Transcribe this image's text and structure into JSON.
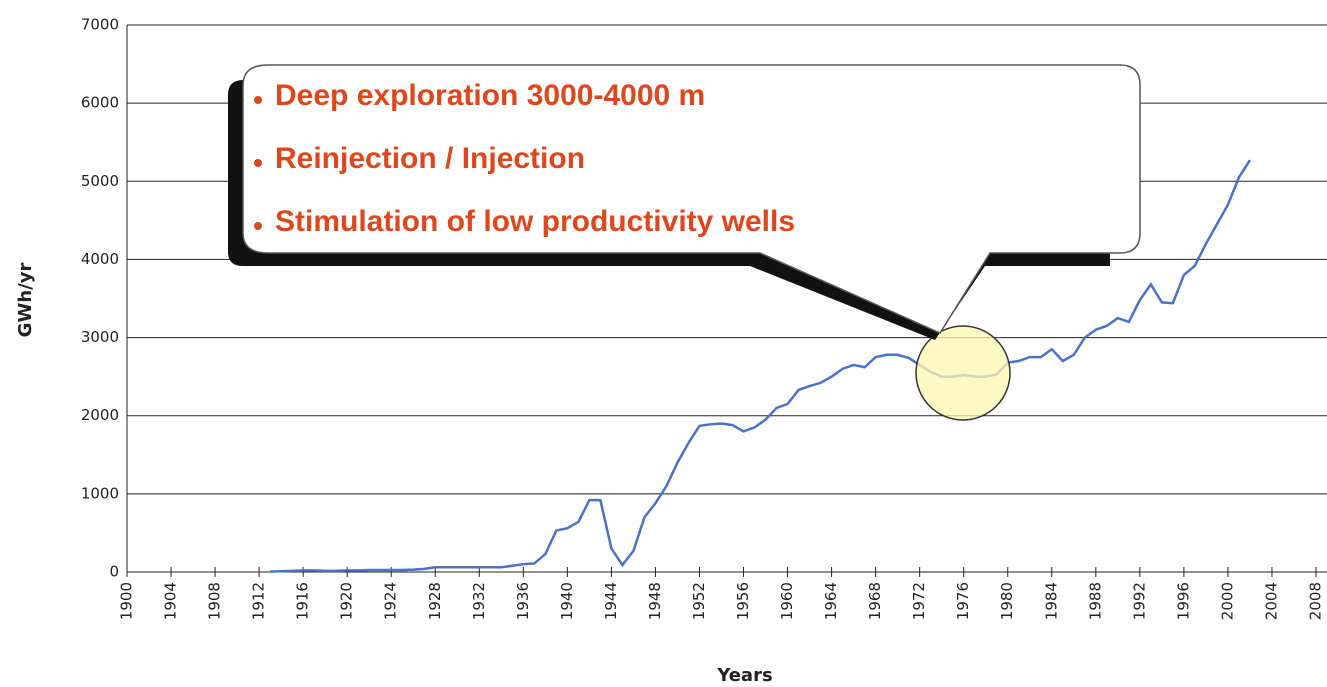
{
  "chart_data": {
    "type": "line",
    "xlabel": "Years",
    "ylabel": "GWh/yr",
    "annotations": [
      "Deep exploration 3000-4000 m",
      "Reinjection / Injection",
      "Stimulation of low  productivity wells"
    ],
    "x": [
      1913,
      1914,
      1915,
      1916,
      1917,
      1918,
      1919,
      1920,
      1921,
      1922,
      1923,
      1924,
      1925,
      1926,
      1927,
      1928,
      1929,
      1930,
      1931,
      1932,
      1933,
      1934,
      1935,
      1936,
      1937,
      1938,
      1939,
      1940,
      1941,
      1942,
      1943,
      1944,
      1945,
      1946,
      1947,
      1948,
      1949,
      1950,
      1951,
      1952,
      1953,
      1954,
      1955,
      1956,
      1957,
      1958,
      1959,
      1960,
      1961,
      1962,
      1963,
      1964,
      1965,
      1966,
      1967,
      1968,
      1969,
      1970,
      1971,
      1972,
      1973,
      1974,
      1975,
      1976,
      1977,
      1978,
      1979,
      1980,
      1981,
      1982,
      1983,
      1984,
      1985,
      1986,
      1987,
      1988,
      1989,
      1990,
      1991,
      1992,
      1993,
      1994,
      1995,
      1996,
      1997,
      1998,
      1999,
      2000,
      2001,
      2002
    ],
    "values": [
      5,
      10,
      15,
      20,
      20,
      15,
      15,
      20,
      20,
      25,
      25,
      25,
      25,
      30,
      40,
      60,
      60,
      60,
      60,
      60,
      60,
      60,
      80,
      100,
      110,
      230,
      530,
      560,
      640,
      920,
      920,
      300,
      90,
      270,
      700,
      880,
      1100,
      1400,
      1650,
      1870,
      1890,
      1900,
      1880,
      1800,
      1850,
      1950,
      2100,
      2150,
      2330,
      2380,
      2420,
      2500,
      2600,
      2650,
      2620,
      2750,
      2780,
      2780,
      2740,
      2650,
      2560,
      2500,
      2500,
      2520,
      2500,
      2500,
      2530,
      2680,
      2700,
      2750,
      2750,
      2850,
      2700,
      2780,
      3000,
      3100,
      3150,
      3250,
      3200,
      3480,
      3680,
      3450,
      3440,
      3800,
      3920,
      4200,
      4450,
      4700,
      5050,
      5270
    ],
    "color": "#4a72c8",
    "xlim": [
      1900,
      2008
    ],
    "xticks": [
      1900,
      1904,
      1908,
      1912,
      1916,
      1920,
      1924,
      1928,
      1932,
      1936,
      1940,
      1944,
      1948,
      1952,
      1956,
      1960,
      1964,
      1968,
      1972,
      1976,
      1980,
      1984,
      1988,
      1992,
      1996,
      2000,
      2004,
      2008
    ],
    "ylim": [
      0,
      7000
    ],
    "yticks": [
      0,
      1000,
      2000,
      3000,
      4000,
      5000,
      6000,
      7000
    ],
    "grid": true
  }
}
